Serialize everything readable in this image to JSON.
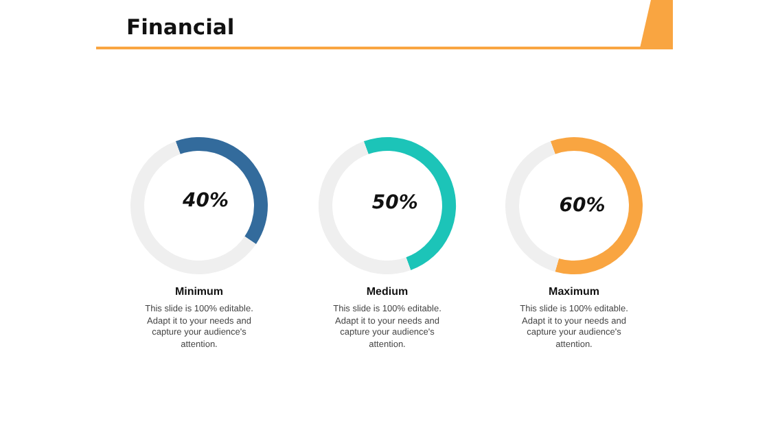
{
  "chart_data": [
    {
      "type": "other",
      "title": "Financial"
    },
    {
      "type": "donut",
      "title": "Minimum",
      "categories": [
        null,
        null
      ],
      "values": [
        40,
        60
      ],
      "colors": [
        "#336b9c",
        "#efefef"
      ],
      "value_labels": [
        "40%",
        null
      ],
      "annotations": [
        "This slide is 100% editable. Adapt it to your needs and capture your audience's attention."
      ]
    },
    {
      "type": "donut",
      "title": "Medium",
      "categories": [
        null,
        null
      ],
      "values": [
        50,
        50
      ],
      "colors": [
        "#1cc4b8",
        "#efefef"
      ],
      "value_labels": [
        "50%",
        null
      ],
      "annotations": [
        "This slide is 100% editable. Adapt it to your needs and capture your audience's attention."
      ]
    },
    {
      "type": "donut",
      "title": "Maximum",
      "categories": [
        null,
        null
      ],
      "values": [
        60,
        40
      ],
      "colors": [
        "#f9a541",
        "#efefef"
      ],
      "value_labels": [
        "60%",
        null
      ],
      "annotations": [
        "This slide is 100% editable. Adapt it to your needs and capture your audience's attention."
      ]
    }
  ]
}
